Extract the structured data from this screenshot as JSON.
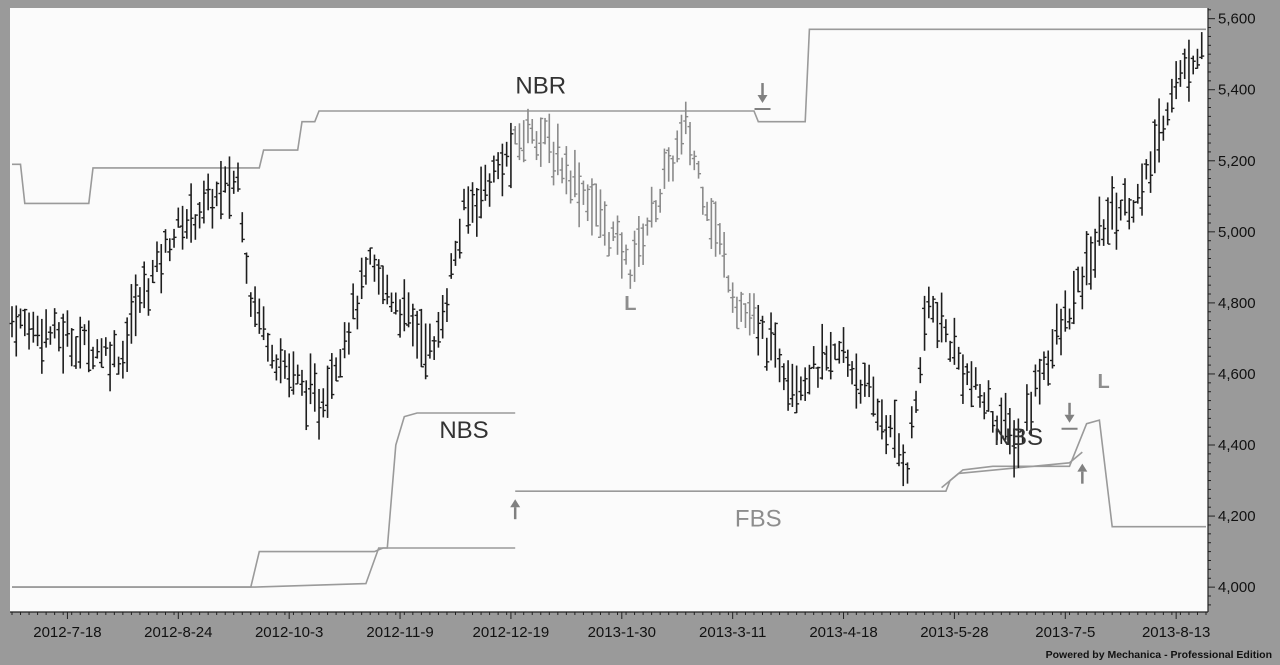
{
  "footer": {
    "credit": "Powered by Mechanica - Professional Edition"
  },
  "colors": {
    "background": "#9a9a9a",
    "plot_bg": "#fbfbfb",
    "bar_dark": "#1e1e1e",
    "bar_light": "#8a8a8a",
    "level_line": "#9a9a9a",
    "annotation_dark": "#333333",
    "annotation_light": "#8d8d8d",
    "arrow": "#808080"
  },
  "chart_data": {
    "type": "line",
    "title": "",
    "xlabel": "",
    "ylabel": "",
    "x_tick_labels": [
      "2012-7-18",
      "2012-8-24",
      "2012-10-3",
      "2012-11-9",
      "2012-12-19",
      "2013-1-30",
      "2013-3-11",
      "2013-4-18",
      "2013-5-28",
      "2013-7-5",
      "2013-8-13"
    ],
    "y_tick_labels": [
      "4,000",
      "4,200",
      "4,400",
      "4,600",
      "4,800",
      "5,000",
      "5,200",
      "5,400",
      "5,600"
    ],
    "y_ticks": [
      4000,
      4200,
      4400,
      4600,
      4800,
      5000,
      5200,
      5400,
      5600
    ],
    "ylim": [
      3930,
      5630
    ],
    "x_range": [
      0,
      280
    ],
    "grid": false,
    "price": {
      "type": "ohlc_bars",
      "x_days": [
        0,
        26,
        28,
        38,
        53,
        56,
        62,
        72,
        84,
        99,
        106,
        122,
        135,
        145,
        158,
        170,
        184,
        195,
        210,
        215,
        226,
        236,
        241,
        249,
        257,
        265,
        272,
        279
      ],
      "close": [
        4750,
        4650,
        4760,
        5000,
        5150,
        4820,
        4650,
        4510,
        4900,
        4660,
        5050,
        5300,
        5100,
        4900,
        5290,
        4800,
        4580,
        4660,
        4350,
        4800,
        4550,
        4400,
        4600,
        4800,
        5050,
        5100,
        5400,
        5530
      ],
      "light_segments": [
        {
          "from_day": 118,
          "to_day": 174
        }
      ]
    },
    "level_lines": [
      {
        "name": "NBR",
        "x_days": [
          0,
          2,
          3,
          18,
          19,
          58,
          59,
          67,
          68,
          71,
          72,
          174,
          175,
          186,
          187,
          280
        ],
        "values": [
          5190,
          5190,
          5080,
          5080,
          5180,
          5180,
          5230,
          5230,
          5310,
          5310,
          5340,
          5340,
          5310,
          5310,
          5570,
          5570
        ]
      },
      {
        "name": "NBS",
        "x_days": [
          0,
          56,
          58,
          85,
          87,
          88,
          90,
          92,
          95,
          105,
          110,
          118
        ],
        "values": [
          4000,
          4000,
          4100,
          4100,
          4110,
          4110,
          4400,
          4480,
          4490,
          4490,
          4490,
          4490
        ]
      },
      {
        "name": "",
        "x_days": [
          0,
          57,
          83,
          86,
          118
        ],
        "values": [
          4000,
          4000,
          4010,
          4110,
          4110
        ]
      },
      {
        "name": "FBS",
        "x_days": [
          118,
          219,
          220,
          223,
          230,
          248,
          252,
          255,
          258,
          280
        ],
        "values": [
          4270,
          4270,
          4300,
          4330,
          4340,
          4340,
          4460,
          4470,
          4170,
          4170
        ]
      },
      {
        "name": "NBS",
        "x_days": [
          218,
          222,
          248,
          251
        ],
        "values": [
          4280,
          4320,
          4350,
          4380
        ]
      }
    ],
    "annotations": [
      {
        "text": "NBR",
        "x_day": 124,
        "value": 5390,
        "style": "dark"
      },
      {
        "text": "NBS",
        "x_day": 106,
        "value": 4420,
        "style": "dark"
      },
      {
        "text": "L",
        "x_day": 145,
        "value": 4780,
        "style": "light"
      },
      {
        "text": "FBS",
        "x_day": 175,
        "value": 4170,
        "style": "light"
      },
      {
        "text": "NBS",
        "x_day": 236,
        "value": 4400,
        "style": "dark"
      },
      {
        "text": "L",
        "x_day": 256,
        "value": 4560,
        "style": "light"
      }
    ],
    "arrows": [
      {
        "direction": "up",
        "x_day": 118,
        "value": 4270
      },
      {
        "direction": "down",
        "x_day": 176,
        "value": 5340
      },
      {
        "direction": "down",
        "x_day": 248,
        "value": 4440
      },
      {
        "direction": "up",
        "x_day": 251,
        "value": 4370
      }
    ]
  }
}
